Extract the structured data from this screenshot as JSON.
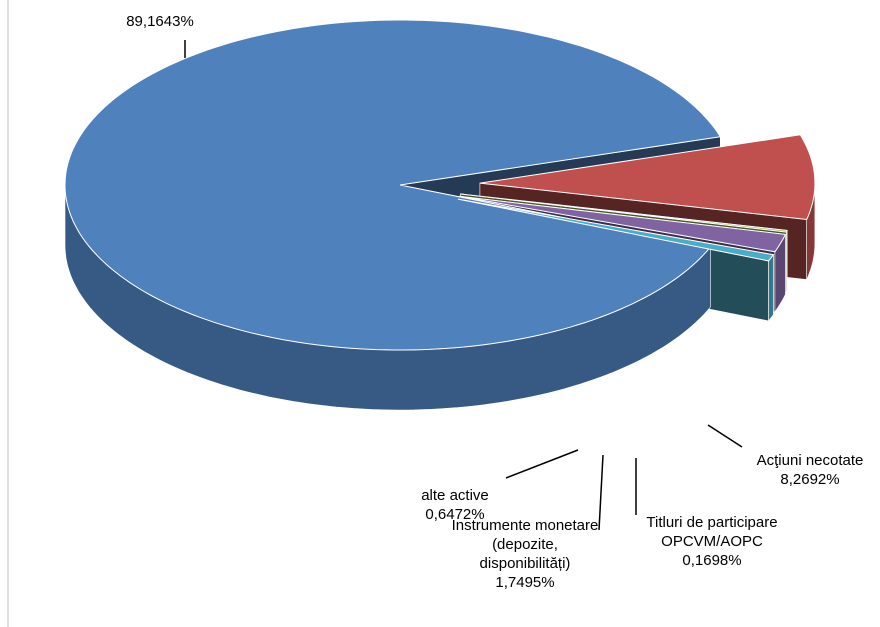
{
  "chart_data": {
    "type": "pie",
    "categories": [
      null,
      "Acţiuni necotate",
      "Titluri de participare OPCVM/AOPC",
      "Instrumente monetare (depozite, disponibilități)",
      "alte active"
    ],
    "values": [
      89.1643,
      8.2692,
      0.1698,
      1.7495,
      0.6472
    ],
    "value_labels": [
      "89,1643%",
      "8,2692%",
      "0,1698%",
      "1,7495%",
      "0,6472%"
    ],
    "colors": [
      "#4f81bd",
      "#c0504d",
      "#9bbb59",
      "#8064a2",
      "#4bacc6"
    ]
  }
}
